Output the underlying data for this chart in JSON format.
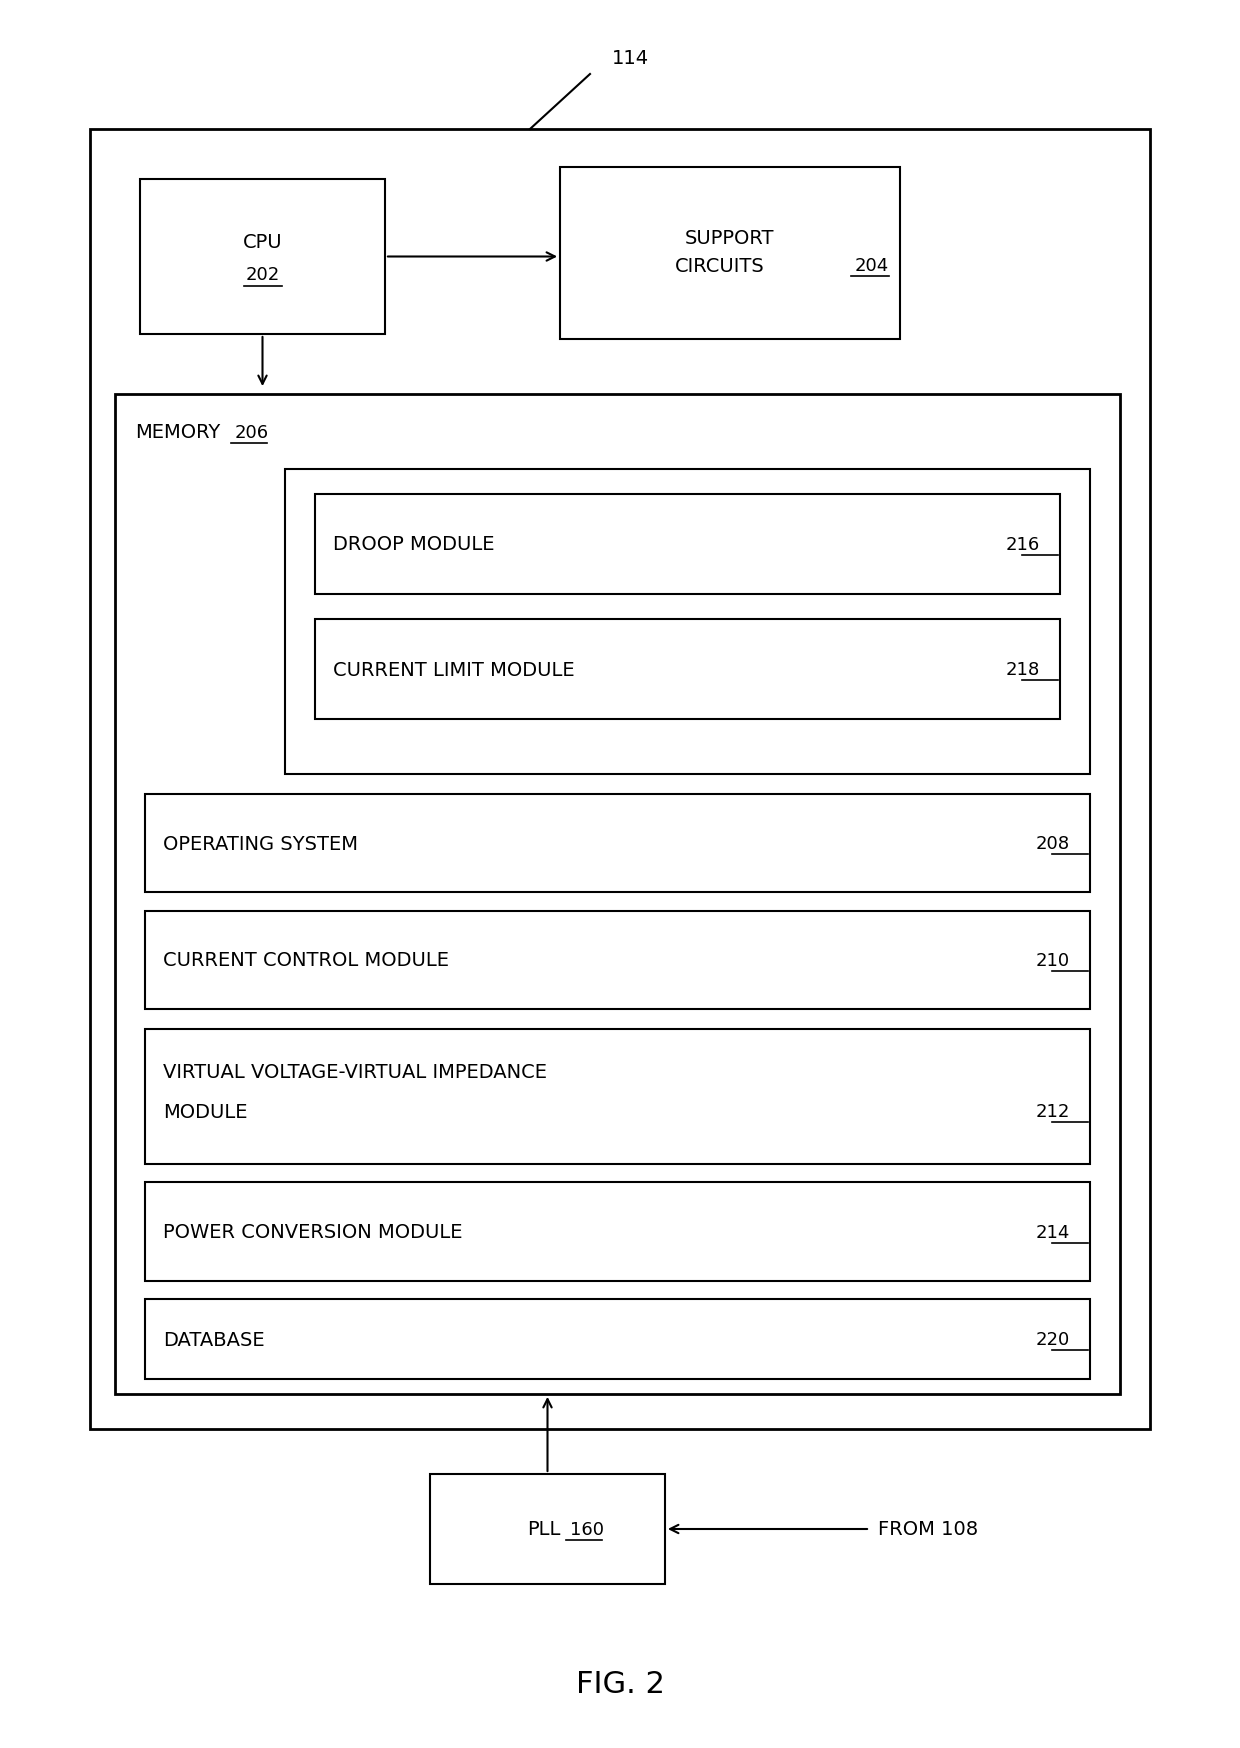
{
  "fig_label": "FIG. 2",
  "bg_color": "#ffffff",
  "label_114": "114",
  "label_from": "FROM 108",
  "font_size_main": 14,
  "font_size_label": 13,
  "font_size_fig": 22
}
